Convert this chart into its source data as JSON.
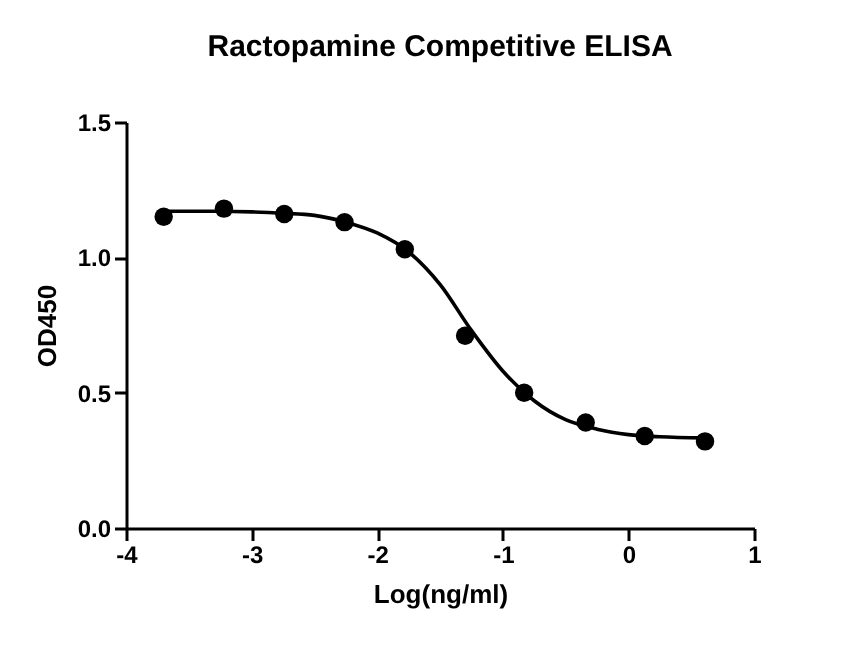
{
  "chart_data": {
    "type": "scatter",
    "title": "Ractopamine Competitive ELISA",
    "xlabel": "Log(ng/ml)",
    "ylabel": "OD450",
    "xlim": [
      -4,
      1
    ],
    "xticks": [
      -4,
      -3,
      -2,
      -1,
      0,
      1
    ],
    "ylim": [
      0,
      1.5
    ],
    "yticks": [
      {
        "value": 0,
        "label": "0.0"
      },
      {
        "value": 0.5,
        "label": "0.5"
      },
      {
        "value": 1,
        "label": "1.0"
      },
      {
        "value": 1.5,
        "label": "1.5"
      }
    ],
    "grid": false,
    "marker": "circle",
    "series": [
      {
        "type": "line",
        "color": "#000000",
        "line_style": "solid",
        "marker": "none",
        "x": [
          -3.7,
          -3.3,
          -3,
          -2.75,
          -2.5,
          -2.25,
          -2,
          -1.75,
          -1.5,
          -1.25,
          -1,
          -0.75,
          -0.5,
          -0.25,
          0,
          0.25,
          0.6
        ],
        "values": [
          1.17,
          1.17,
          1.168,
          1.163,
          1.155,
          1.13,
          1.09,
          1.02,
          0.9,
          0.73,
          0.58,
          0.47,
          0.4,
          0.365,
          0.345,
          0.337,
          0.333
        ]
      },
      {
        "type": "scatter",
        "color": "#000000",
        "x": [
          -3.7,
          -3.22,
          -2.74,
          -2.26,
          -1.78,
          -1.3,
          -0.83,
          -0.34,
          0.13,
          0.61
        ],
        "values": [
          1.15,
          1.18,
          1.16,
          1.13,
          1.03,
          0.71,
          0.5,
          0.39,
          0.34,
          0.32
        ]
      }
    ]
  }
}
